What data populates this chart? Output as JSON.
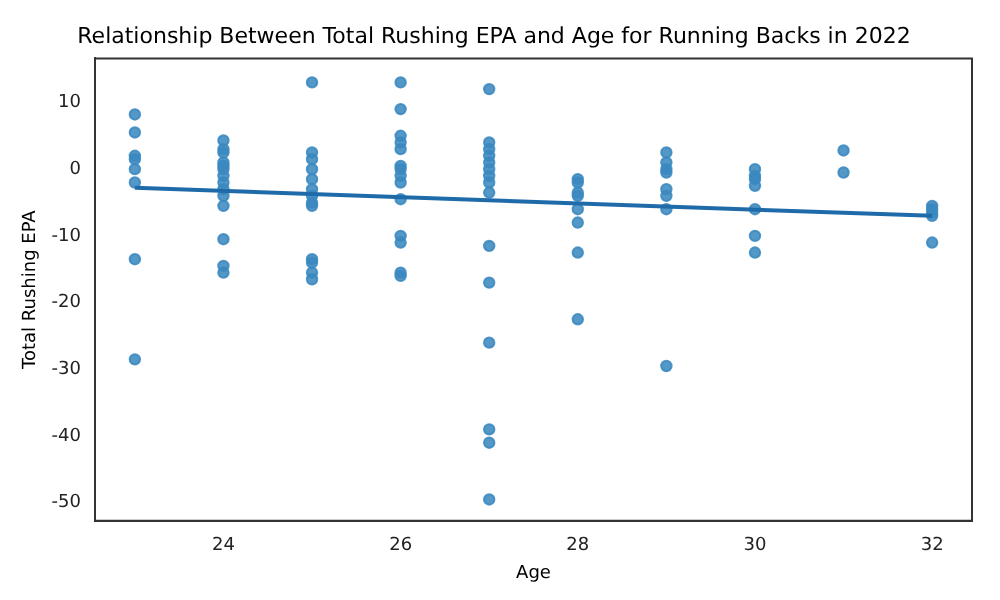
{
  "chart_data": {
    "type": "scatter",
    "title": "Relationship Between Total Rushing EPA and Age for Running Backs in 2022",
    "xlabel": "Age",
    "ylabel": "Total Rushing EPA",
    "xlim": [
      22.55,
      32.45
    ],
    "xticks": [
      24,
      26,
      28,
      30,
      32
    ],
    "ylim": [
      -52.7,
      16.6
    ],
    "yticks": [
      -50,
      -40,
      -30,
      -20,
      -10,
      0,
      10
    ],
    "grid": false,
    "legend": false,
    "series": [
      {
        "type": "scatter",
        "color": "#3a88c0",
        "marker": "circle",
        "x": [
          23,
          23,
          23,
          23,
          23,
          23,
          23,
          23,
          24,
          24,
          24,
          24,
          24,
          24,
          24,
          24,
          24,
          24,
          24,
          24,
          24,
          24,
          25,
          25,
          25,
          25,
          25,
          25,
          25,
          25,
          25,
          25,
          25,
          25,
          25,
          26,
          26,
          26,
          26,
          26,
          26,
          26,
          26,
          26,
          26,
          26,
          26,
          26,
          26,
          27,
          27,
          27,
          27,
          27,
          27,
          27,
          27,
          27,
          27,
          27,
          27,
          27,
          27,
          27,
          28,
          28,
          28,
          28,
          28,
          28,
          28,
          28,
          29,
          29,
          29,
          29,
          29,
          29,
          29,
          29,
          30,
          30,
          30,
          30,
          30,
          30,
          30,
          31,
          31,
          32,
          32,
          32,
          32,
          32
        ],
        "values": [
          8.2,
          5.5,
          2,
          1.5,
          0,
          -2,
          -13.5,
          -28.5,
          4.3,
          3,
          2.5,
          1,
          0.5,
          0,
          -1,
          -2,
          -3,
          -4,
          -5.5,
          -10.5,
          -14.5,
          -15.5,
          13,
          2.5,
          1.5,
          0,
          -1.5,
          -3,
          -4,
          -5,
          -5.5,
          -13.5,
          -14,
          -15.5,
          -16.5,
          13,
          9,
          5,
          4,
          3,
          0.5,
          0,
          -1,
          -2,
          -4.5,
          -10,
          -11,
          -15.5,
          -16,
          12,
          4,
          3,
          2,
          1,
          0,
          -1,
          -2,
          -3.5,
          -11.5,
          -17,
          -26,
          -39,
          -41,
          -49.5,
          -1.5,
          -2,
          -3.5,
          -4,
          -6,
          -8,
          -12.5,
          -22.5,
          2.5,
          1,
          0,
          -0.5,
          -3,
          -4,
          -6,
          -29.5,
          0,
          -1,
          -1.5,
          -2.5,
          -6,
          -10,
          -12.5,
          2.8,
          -0.5,
          -5.5,
          -6,
          -6.5,
          -7,
          -11
        ]
      },
      {
        "type": "line",
        "color": "#1f6aa8",
        "x": [
          23,
          32
        ],
        "values": [
          -2.8,
          -7
        ]
      }
    ]
  }
}
